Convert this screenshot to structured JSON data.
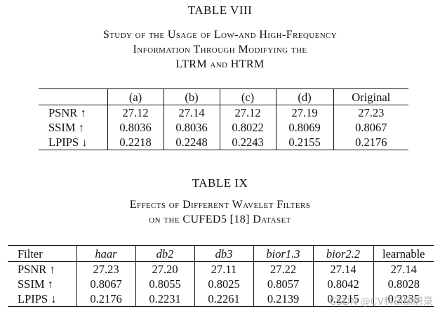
{
  "table8": {
    "label": "TABLE VIII",
    "caption_lines": [
      "Study of the Usage of Low-and High-Frequency",
      "Information Through Modifying the",
      "LTRM and HTRM"
    ],
    "columns": [
      "",
      "(a)",
      "(b)",
      "(c)",
      "(d)",
      "Original"
    ],
    "rows": [
      {
        "metric": "PSNR ↑",
        "values": [
          "27.12",
          "27.14",
          "27.12",
          "27.19",
          "27.23"
        ],
        "bold_index": 4
      },
      {
        "metric": "SSIM ↑",
        "values": [
          "0.8036",
          "0.8036",
          "0.8022",
          "0.8069",
          "0.8067"
        ],
        "bold_index": 3
      },
      {
        "metric": "LPIPS ↓",
        "values": [
          "0.2218",
          "0.2248",
          "0.2243",
          "0.2155",
          "0.2176"
        ],
        "bold_index": 3
      }
    ]
  },
  "table9": {
    "label": "TABLE IX",
    "caption_lines": [
      "Effects of Different Wavelet Filters",
      "on the CUFED5 [18] Dataset"
    ],
    "columns": [
      "Filter",
      "haar",
      "db2",
      "db3",
      "bior1.3",
      "bior2.2",
      "learnable"
    ],
    "rows": [
      {
        "metric": "PSNR ↑",
        "values": [
          "27.23",
          "27.20",
          "27.11",
          "27.22",
          "27.14",
          "27.14"
        ],
        "bold_index": 0
      },
      {
        "metric": "SSIM ↑",
        "values": [
          "0.8067",
          "0.8055",
          "0.8025",
          "0.8057",
          "0.8042",
          "0.8028"
        ],
        "bold_index": 0
      },
      {
        "metric": "LPIPS ↓",
        "values": [
          "0.2176",
          "0.2231",
          "0.2261",
          "0.2139",
          "0.2215",
          "0.2235"
        ],
        "bold_index": 3
      }
    ]
  },
  "watermark": "CSDN @CV科研随想录"
}
